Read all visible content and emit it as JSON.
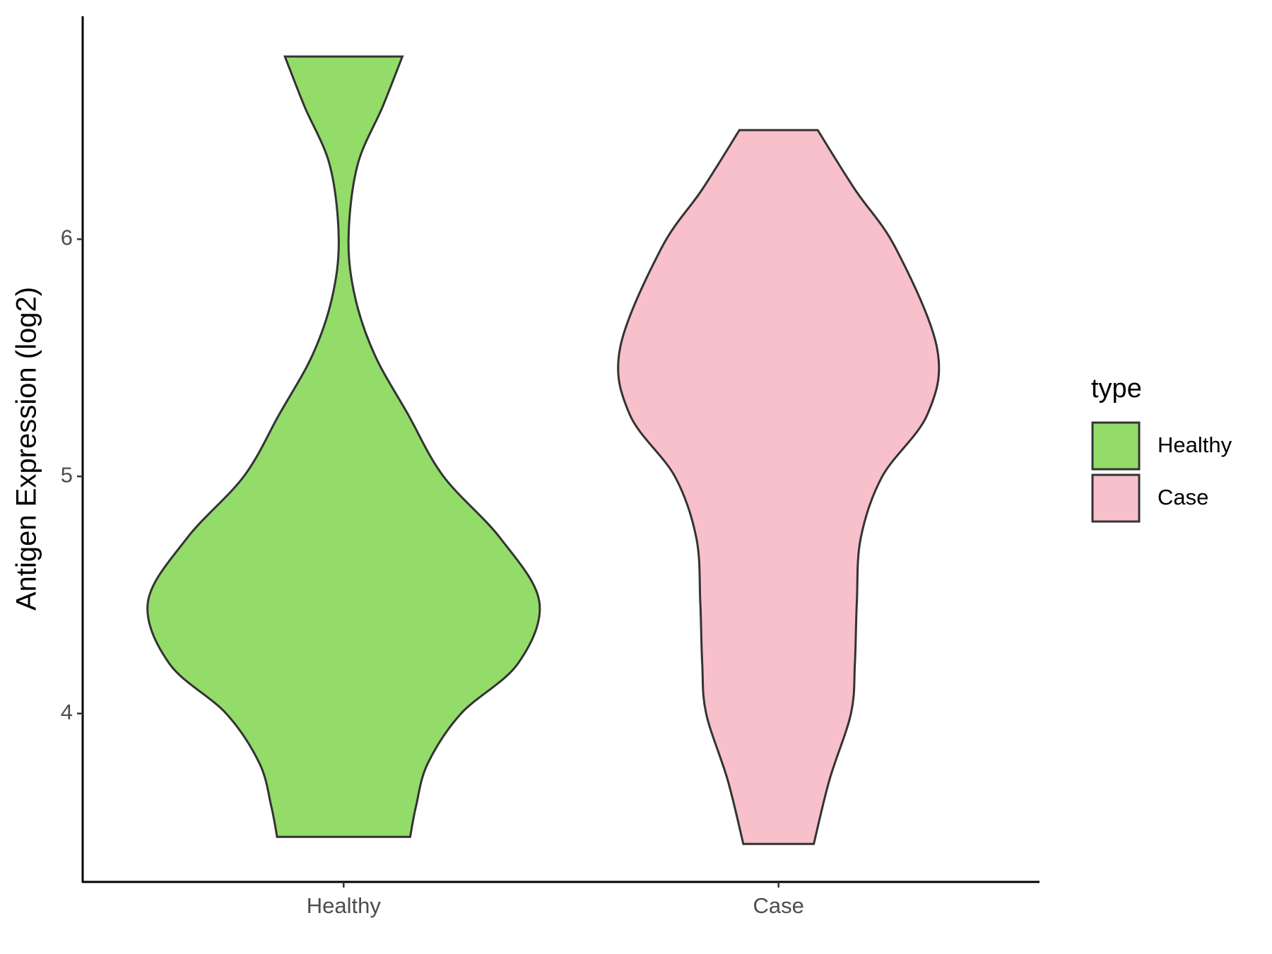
{
  "chart_data": {
    "type": "violin",
    "ylabel": "Antigen Expression (log2)",
    "categories": [
      "Healthy",
      "Case"
    ],
    "ylim": [
      3.29,
      6.94
    ],
    "yticks": [
      4,
      5,
      6
    ],
    "legend_title": "type",
    "legend_position": "right",
    "series": [
      {
        "name": "Healthy",
        "color": "#93dc6a",
        "y": [
          6.77,
          6.56,
          6.31,
          6.0,
          5.75,
          5.51,
          5.26,
          5.0,
          4.74,
          4.47,
          4.21,
          4.0,
          3.79,
          3.61,
          3.48
        ],
        "width": [
          0.3,
          0.2,
          0.07,
          0.025,
          0.06,
          0.16,
          0.33,
          0.51,
          0.8,
          1.0,
          0.89,
          0.6,
          0.43,
          0.37,
          0.34
        ]
      },
      {
        "name": "Case",
        "color": "#f8c0cb",
        "y": [
          6.46,
          6.21,
          5.96,
          5.54,
          5.26,
          5.0,
          4.74,
          4.47,
          4.21,
          4.0,
          3.72,
          3.45
        ],
        "width": [
          0.2,
          0.39,
          0.6,
          0.81,
          0.76,
          0.53,
          0.42,
          0.4,
          0.39,
          0.37,
          0.26,
          0.18
        ]
      }
    ]
  }
}
